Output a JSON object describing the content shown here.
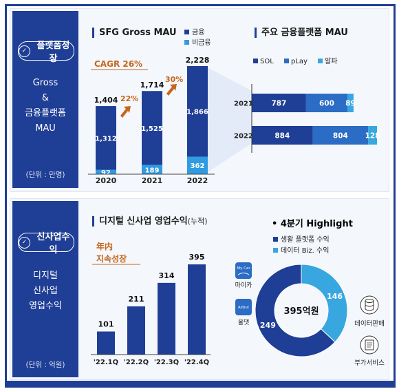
{
  "colors": {
    "navy": "#1f3e95",
    "blue": "#2b6cc4",
    "sky": "#38a7e0",
    "orange": "#c5661c"
  },
  "top": {
    "sidebar": {
      "title": "플랫폼성장",
      "sub": [
        "Gross",
        "&",
        "금융플랫폼",
        "MAU"
      ],
      "unit": "(단위 : 만명)"
    },
    "mau_title": "SFG Gross MAU",
    "cagr": "CAGR 26%",
    "arrows": [
      "22%",
      "30%"
    ],
    "split_title": "주요 금융플랫폼 MAU"
  },
  "bottom": {
    "sidebar": {
      "title": "신사업수익",
      "sub": [
        "디지털",
        "신사업",
        "영업수익"
      ],
      "unit": "(단위 : 억원)"
    },
    "rev_title": "디지털 신사업 영업수익",
    "rev_title_note": "(누적)",
    "note_line1": "年内",
    "note_line2": "지속성장",
    "highlight": "• 4분기 Highlight",
    "app1_logo": "My Car",
    "app1_label": "마이카",
    "app2_logo": "Allbut",
    "app2_label": "올댓",
    "donut_center": "395억원",
    "side1": "데이터판매",
    "side2": "부가서비스"
  },
  "chart_data": [
    {
      "type": "bar",
      "stacked": true,
      "title": "SFG Gross MAU",
      "categories": [
        "2020",
        "2021",
        "2022"
      ],
      "series": [
        {
          "name": "금융",
          "values": [
            1312,
            1525,
            1866
          ],
          "color": "#1f3e95"
        },
        {
          "name": "비금융",
          "values": [
            92,
            189,
            362
          ],
          "color": "#2f9be0"
        }
      ],
      "totals": [
        1404,
        1714,
        2228
      ],
      "ylim": [
        0,
        2300
      ]
    },
    {
      "type": "bar",
      "stacked": true,
      "orientation": "horizontal",
      "title": "주요 금융플랫폼 MAU",
      "categories": [
        "2021",
        "2022"
      ],
      "series": [
        {
          "name": "SOL",
          "values": [
            787,
            884
          ],
          "color": "#1f3e95"
        },
        {
          "name": "pLay",
          "values": [
            600,
            804
          ],
          "color": "#2b6cc4"
        },
        {
          "name": "알파",
          "values": [
            89,
            128
          ],
          "color": "#38a7e0"
        }
      ],
      "xlim": [
        0,
        1816
      ]
    },
    {
      "type": "bar",
      "title": "디지털 신사업 영업수익",
      "categories": [
        "'22.1Q",
        "'22.2Q",
        "'22.3Q",
        "'22.4Q"
      ],
      "values": [
        101,
        211,
        314,
        395
      ],
      "ylim": [
        0,
        420
      ]
    },
    {
      "type": "pie",
      "title": "4분기 Highlight",
      "labels": [
        "생활 플랫폼 수익",
        "데이터 Biz. 수익"
      ],
      "values": [
        249,
        146
      ],
      "colors": [
        "#1f3e95",
        "#38a7e0"
      ],
      "total": "395억원"
    }
  ]
}
